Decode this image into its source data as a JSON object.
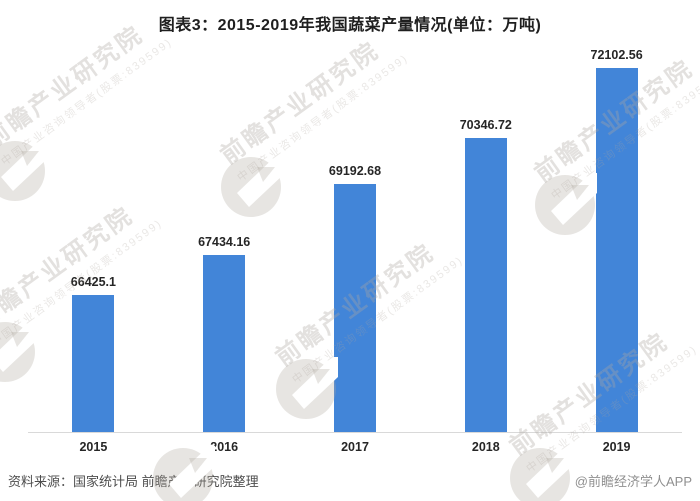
{
  "chart_data": {
    "type": "bar",
    "title": "图表3：2015-2019年我国蔬菜产量情况(单位：万吨)",
    "unit": "万吨",
    "categories": [
      "2015",
      "2016",
      "2017",
      "2018",
      "2019"
    ],
    "values": [
      66425.1,
      67434.16,
      69192.68,
      70346.72,
      72102.56
    ],
    "value_labels": [
      "66425.1",
      "67434.16",
      "69192.68",
      "70346.72",
      "72102.56"
    ],
    "xlabel": "",
    "ylabel": "",
    "ylim": [
      63000,
      73000
    ],
    "grid": false,
    "legend": "none",
    "bar_color": "#4285d8",
    "axis_line_color": "#d9d9d9",
    "label_color": "#262626"
  },
  "footer": {
    "source": "资料来源：国家统计局 前瞻产业研究院整理",
    "credit": "@前瞻经济学人APP"
  },
  "watermark": {
    "main_text": "前瞻产业研究院",
    "sub_text": "中国产业咨询领导者(股票:839599)"
  }
}
